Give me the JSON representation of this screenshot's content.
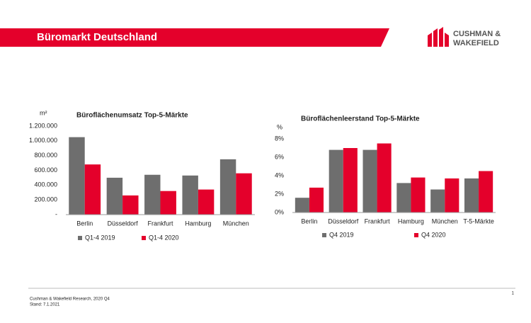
{
  "header": {
    "title": "Büromarkt Deutschland",
    "logo_line1": "CUSHMAN &",
    "logo_line2": "WAKEFIELD"
  },
  "footer": {
    "source": "Cushman & Wakefield Research, 2020 Q4",
    "date": "Stand: 7.1.2021",
    "page": "1"
  },
  "chart_data": [
    {
      "type": "bar",
      "title": "Büroflächenumsatz  Top-5-Märkte",
      "ylabel": "m²",
      "categories": [
        "Berlin",
        "Düsseldorf",
        "Frankfurt",
        "Hamburg",
        "München"
      ],
      "series": [
        {
          "name": "Q1-4 2019",
          "color": "#6e6e6e",
          "values": [
            1050000,
            500000,
            540000,
            530000,
            750000
          ]
        },
        {
          "name": "Q1-4 2020",
          "color": "#e4002b",
          "values": [
            680000,
            260000,
            320000,
            340000,
            560000
          ]
        }
      ],
      "ylim": [
        0,
        1200000
      ],
      "yticks": [
        {
          "value": 0,
          "label": "-"
        },
        {
          "value": 200000,
          "label": "200.000"
        },
        {
          "value": 400000,
          "label": "400.000"
        },
        {
          "value": 600000,
          "label": "600.000"
        },
        {
          "value": 800000,
          "label": "800.000"
        },
        {
          "value": 1000000,
          "label": "1.000.000"
        },
        {
          "value": 1200000,
          "label": "1.200.000"
        }
      ],
      "grid": false,
      "legend": "bottom"
    },
    {
      "type": "bar",
      "title": "Büroflächenleerstand  Top-5-Märkte",
      "ylabel": "%",
      "categories": [
        "Berlin",
        "Düsseldorf",
        "Frankfurt",
        "Hamburg",
        "München",
        "T-5-Märkte"
      ],
      "series": [
        {
          "name": "Q4 2019",
          "color": "#6e6e6e",
          "values": [
            1.6,
            6.8,
            6.8,
            3.2,
            2.5,
            3.7
          ]
        },
        {
          "name": "Q4 2020",
          "color": "#e4002b",
          "values": [
            2.7,
            7.0,
            7.5,
            3.8,
            3.7,
            4.5
          ]
        }
      ],
      "ylim": [
        0,
        8
      ],
      "yticks": [
        {
          "value": 0,
          "label": "0%"
        },
        {
          "value": 2,
          "label": "2%"
        },
        {
          "value": 4,
          "label": "4%"
        },
        {
          "value": 6,
          "label": "6%"
        },
        {
          "value": 8,
          "label": "8%"
        }
      ],
      "grid": false,
      "legend": "bottom"
    }
  ]
}
